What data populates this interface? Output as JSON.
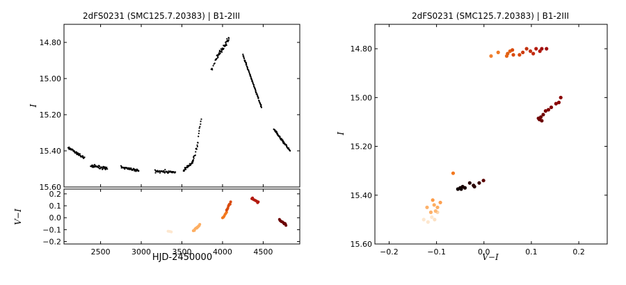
{
  "chart_data": [
    {
      "id": "lightcurve",
      "type": "scatter",
      "title": "2dFS0231 (SMC125.7.20383) | B1-2III",
      "xlabel": "",
      "ylabel": "I",
      "xlim": [
        2050,
        4950
      ],
      "ylim": [
        15.6,
        14.7
      ],
      "y_inverted": true,
      "xticks": [
        2500,
        3000,
        3500,
        4000,
        4500
      ],
      "yticks": [
        14.8,
        15.0,
        15.2,
        15.4,
        15.6
      ],
      "ytick_labels": [
        "14.80",
        "15.00",
        "15.20",
        "15.40",
        "15.60"
      ],
      "show_xtick_labels": false,
      "marker_color": "#000000",
      "segments": [
        {
          "x": [
            2100,
            2300
          ],
          "y": [
            15.38,
            15.44
          ],
          "n": 55,
          "noise": 0.01
        },
        {
          "x": [
            2380,
            2580
          ],
          "y": [
            15.48,
            15.5
          ],
          "n": 45,
          "noise": 0.012
        },
        {
          "x": [
            2750,
            2970
          ],
          "y": [
            15.49,
            15.51
          ],
          "n": 45,
          "noise": 0.01
        },
        {
          "x": [
            3170,
            3420
          ],
          "y": [
            15.51,
            15.52
          ],
          "n": 45,
          "noise": 0.014
        },
        {
          "x": [
            3520,
            3640
          ],
          "y": [
            15.51,
            15.46
          ],
          "n": 30,
          "noise": 0.012
        },
        {
          "x": [
            3640,
            3700
          ],
          "y": [
            15.45,
            15.35
          ],
          "n": 14,
          "noise": 0.02
        },
        {
          "x": [
            3700,
            3740
          ],
          "y": [
            15.32,
            15.22
          ],
          "n": 8,
          "noise": 0.015
        },
        {
          "x": [
            3860,
            3920
          ],
          "y": [
            14.96,
            14.89
          ],
          "n": 8,
          "noise": 0.02
        },
        {
          "x": [
            3920,
            4080
          ],
          "y": [
            14.89,
            14.78
          ],
          "n": 45,
          "noise": 0.02
        },
        {
          "x": [
            4250,
            4480
          ],
          "y": [
            14.87,
            15.16
          ],
          "n": 75,
          "noise": 0.008
        },
        {
          "x": [
            4630,
            4830
          ],
          "y": [
            15.28,
            15.4
          ],
          "n": 60,
          "noise": 0.008
        }
      ]
    },
    {
      "id": "color_curve",
      "type": "scatter",
      "title": "",
      "xlabel": "HJD-2450000",
      "ylabel": "V−I",
      "xlim": [
        2050,
        4950
      ],
      "ylim": [
        -0.22,
        0.24
      ],
      "xticks": [
        2500,
        3000,
        3500,
        4000,
        4500
      ],
      "xtick_labels": [
        "2500",
        "3000",
        "3500",
        "4000",
        "4500"
      ],
      "yticks": [
        -0.2,
        -0.1,
        0.0,
        0.1,
        0.2
      ],
      "ytick_labels": [
        "−0.2",
        "−0.1",
        "0.0",
        "0.1",
        "0.2"
      ],
      "groups": [
        {
          "x": [
            3330,
            3370
          ],
          "y": [
            -0.11,
            -0.12
          ],
          "n": 4,
          "color": "#fde7cf"
        },
        {
          "x": [
            3640,
            3720
          ],
          "y": [
            -0.11,
            -0.06
          ],
          "n": 12,
          "color": "#fdae62"
        },
        {
          "x": [
            4000,
            4050
          ],
          "y": [
            0.0,
            0.05
          ],
          "n": 6,
          "color": "#f2781e"
        },
        {
          "x": [
            4050,
            4100
          ],
          "y": [
            0.06,
            0.13
          ],
          "n": 8,
          "color": "#d94a0d"
        },
        {
          "x": [
            4360,
            4440
          ],
          "y": [
            0.16,
            0.13
          ],
          "n": 10,
          "color": "#b31a0e"
        },
        {
          "x": [
            4700,
            4780
          ],
          "y": [
            -0.02,
            -0.06
          ],
          "n": 12,
          "color": "#6b0000"
        }
      ]
    },
    {
      "id": "cmd",
      "type": "scatter",
      "title": "2dFS0231 (SMC125.7.20383) | B1-2III",
      "xlabel": "V−I",
      "ylabel": "I",
      "xlim": [
        -0.23,
        0.26
      ],
      "ylim": [
        15.6,
        14.7
      ],
      "y_inverted": true,
      "xticks": [
        -0.2,
        -0.1,
        0.0,
        0.1,
        0.2
      ],
      "xtick_labels": [
        "−0.2",
        "−0.1",
        "0.0",
        "0.1",
        "0.2"
      ],
      "yticks": [
        14.8,
        15.0,
        15.2,
        15.4,
        15.6
      ],
      "ytick_labels": [
        "14.80",
        "15.00",
        "15.20",
        "15.40",
        "15.60"
      ],
      "points": [
        {
          "x": -0.127,
          "y": 15.5,
          "color": "#fde7cf"
        },
        {
          "x": -0.118,
          "y": 15.51,
          "color": "#fde7cf"
        },
        {
          "x": -0.11,
          "y": 15.49,
          "color": "#fde7cf"
        },
        {
          "x": -0.104,
          "y": 15.5,
          "color": "#fce0c2"
        },
        {
          "x": -0.098,
          "y": 15.47,
          "color": "#fdd6ad"
        },
        {
          "x": -0.12,
          "y": 15.45,
          "color": "#fdb16a"
        },
        {
          "x": -0.112,
          "y": 15.47,
          "color": "#fdb16a"
        },
        {
          "x": -0.105,
          "y": 15.44,
          "color": "#fdae62"
        },
        {
          "x": -0.098,
          "y": 15.45,
          "color": "#fdae62"
        },
        {
          "x": -0.092,
          "y": 15.43,
          "color": "#fd9f4f"
        },
        {
          "x": -0.108,
          "y": 15.42,
          "color": "#fd9a45"
        },
        {
          "x": -0.102,
          "y": 15.465,
          "color": "#fdb875"
        },
        {
          "x": -0.065,
          "y": 15.31,
          "color": "#f2781e"
        },
        {
          "x": 0.015,
          "y": 14.83,
          "color": "#f08030"
        },
        {
          "x": 0.03,
          "y": 14.815,
          "color": "#f07a25"
        },
        {
          "x": 0.048,
          "y": 14.83,
          "color": "#e8681a"
        },
        {
          "x": 0.055,
          "y": 14.81,
          "color": "#e25f16"
        },
        {
          "x": 0.06,
          "y": 14.805,
          "color": "#d94a0d"
        },
        {
          "x": 0.062,
          "y": 14.825,
          "color": "#d94a0d"
        },
        {
          "x": 0.05,
          "y": 14.82,
          "color": "#e06012"
        },
        {
          "x": 0.075,
          "y": 14.825,
          "color": "#d94a0d"
        },
        {
          "x": 0.082,
          "y": 14.815,
          "color": "#cc3a0c"
        },
        {
          "x": 0.09,
          "y": 14.8,
          "color": "#c23210"
        },
        {
          "x": 0.098,
          "y": 14.81,
          "color": "#c23210"
        },
        {
          "x": 0.104,
          "y": 14.82,
          "color": "#c22a10"
        },
        {
          "x": 0.11,
          "y": 14.8,
          "color": "#b31a0e"
        },
        {
          "x": 0.118,
          "y": 14.81,
          "color": "#b31a0e"
        },
        {
          "x": 0.122,
          "y": 14.8,
          "color": "#a01010"
        },
        {
          "x": 0.132,
          "y": 14.8,
          "color": "#a01010"
        },
        {
          "x": 0.162,
          "y": 15.0,
          "color": "#8a0000"
        },
        {
          "x": 0.158,
          "y": 15.02,
          "color": "#8a0000"
        },
        {
          "x": 0.152,
          "y": 15.025,
          "color": "#8a0000"
        },
        {
          "x": 0.142,
          "y": 15.04,
          "color": "#800000"
        },
        {
          "x": 0.136,
          "y": 15.05,
          "color": "#800000"
        },
        {
          "x": 0.13,
          "y": 15.055,
          "color": "#7a0000"
        },
        {
          "x": 0.125,
          "y": 15.07,
          "color": "#700000"
        },
        {
          "x": 0.12,
          "y": 15.08,
          "color": "#6b0000"
        },
        {
          "x": 0.117,
          "y": 15.09,
          "color": "#6b0000"
        },
        {
          "x": 0.122,
          "y": 15.095,
          "color": "#6b0000"
        },
        {
          "x": 0.115,
          "y": 15.085,
          "color": "#700000"
        },
        {
          "x": -0.001,
          "y": 15.34,
          "color": "#5a0000"
        },
        {
          "x": -0.01,
          "y": 15.35,
          "color": "#3a0000"
        },
        {
          "x": -0.022,
          "y": 15.36,
          "color": "#2a0000"
        },
        {
          "x": -0.03,
          "y": 15.35,
          "color": "#2a0000"
        },
        {
          "x": -0.04,
          "y": 15.37,
          "color": "#1a0000"
        },
        {
          "x": -0.045,
          "y": 15.365,
          "color": "#1a0000"
        },
        {
          "x": -0.05,
          "y": 15.37,
          "color": "#100000"
        },
        {
          "x": -0.055,
          "y": 15.375,
          "color": "#100000"
        },
        {
          "x": -0.048,
          "y": 15.375,
          "color": "#100000"
        },
        {
          "x": -0.02,
          "y": 15.365,
          "color": "#2a0000"
        }
      ]
    }
  ]
}
